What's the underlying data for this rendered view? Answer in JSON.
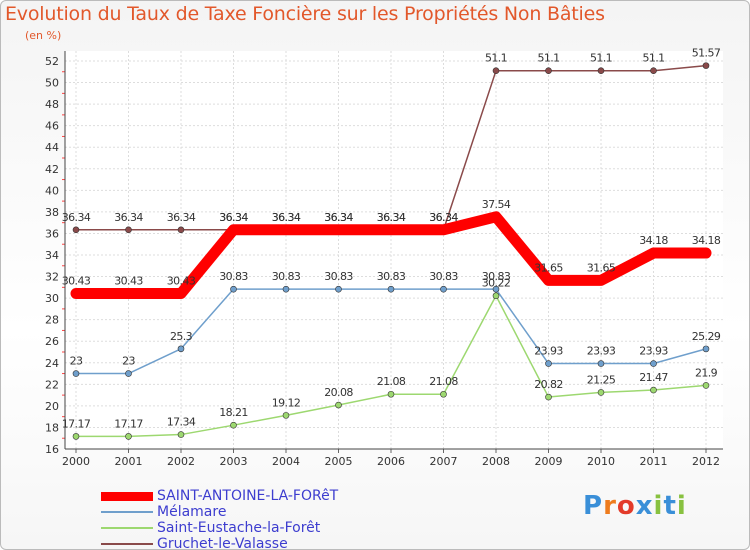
{
  "chart_data": {
    "type": "line",
    "title": "Evolution du Taux de Taxe Foncière sur les Propriétés Non Bâties",
    "unit_label": "(en %)",
    "x": [
      "2000",
      "2001",
      "2002",
      "2003",
      "2004",
      "2005",
      "2006",
      "2007",
      "2008",
      "2009",
      "2010",
      "2011",
      "2012"
    ],
    "ylim": [
      16,
      52
    ],
    "yticks": [
      16,
      18,
      20,
      22,
      24,
      26,
      28,
      30,
      32,
      34,
      36,
      38,
      40,
      42,
      44,
      46,
      48,
      50,
      52
    ],
    "grid": true,
    "legend_position": "bottom-left",
    "series": [
      {
        "name": "SAINT-ANTOINE-LA-FORêT",
        "color": "#ff0000",
        "emphasis": true,
        "values": [
          30.43,
          30.43,
          30.43,
          36.34,
          36.34,
          36.34,
          36.34,
          36.34,
          37.54,
          31.65,
          31.65,
          34.18,
          34.18
        ],
        "labels": [
          "30.43",
          "30.43",
          "30.43",
          "36.34",
          "36.34",
          "36.34",
          "36.34",
          "36.34",
          "37.54",
          "31.65",
          "31.65",
          "34.18",
          "34.18"
        ]
      },
      {
        "name": "Mélamare",
        "color": "#6f9fcc",
        "values": [
          23,
          23,
          25.3,
          30.83,
          30.83,
          30.83,
          30.83,
          30.83,
          30.83,
          23.93,
          23.93,
          23.93,
          25.29
        ],
        "labels": [
          "23",
          "23",
          "25.3",
          "30.83",
          "30.83",
          "30.83",
          "30.83",
          "30.83",
          "30.83",
          "23.93",
          "23.93",
          "23.93",
          "25.29"
        ]
      },
      {
        "name": "Saint-Eustache-la-Forêt",
        "color": "#9dd870",
        "values": [
          17.17,
          17.17,
          17.34,
          18.21,
          19.12,
          20.08,
          21.08,
          21.08,
          30.22,
          20.82,
          21.25,
          21.47,
          21.9
        ],
        "labels": [
          "17.17",
          "17.17",
          "17.34",
          "18.21",
          "19.12",
          "20.08",
          "21.08",
          "21.08",
          "30.22",
          "20.82",
          "21.25",
          "21.47",
          "21.9"
        ]
      },
      {
        "name": "Gruchet-le-Valasse",
        "color": "#8a4a4a",
        "values": [
          36.34,
          36.34,
          36.34,
          36.34,
          36.34,
          36.34,
          36.34,
          36.34,
          51.1,
          51.1,
          51.1,
          51.1,
          51.57
        ],
        "labels": [
          "36.34",
          "36.34",
          "36.34",
          "36.34",
          "36.34",
          "36.34",
          "36.34",
          "36.34",
          "51.1",
          "51.1",
          "51.1",
          "51.1",
          "51.57"
        ]
      }
    ]
  },
  "logo": {
    "text": "Proxiti",
    "colors": [
      "#3a8fd8",
      "#ee7c1e",
      "#e33b2a",
      "#3a8fd8",
      "#88c140",
      "#3a8fd8",
      "#88c140"
    ]
  }
}
